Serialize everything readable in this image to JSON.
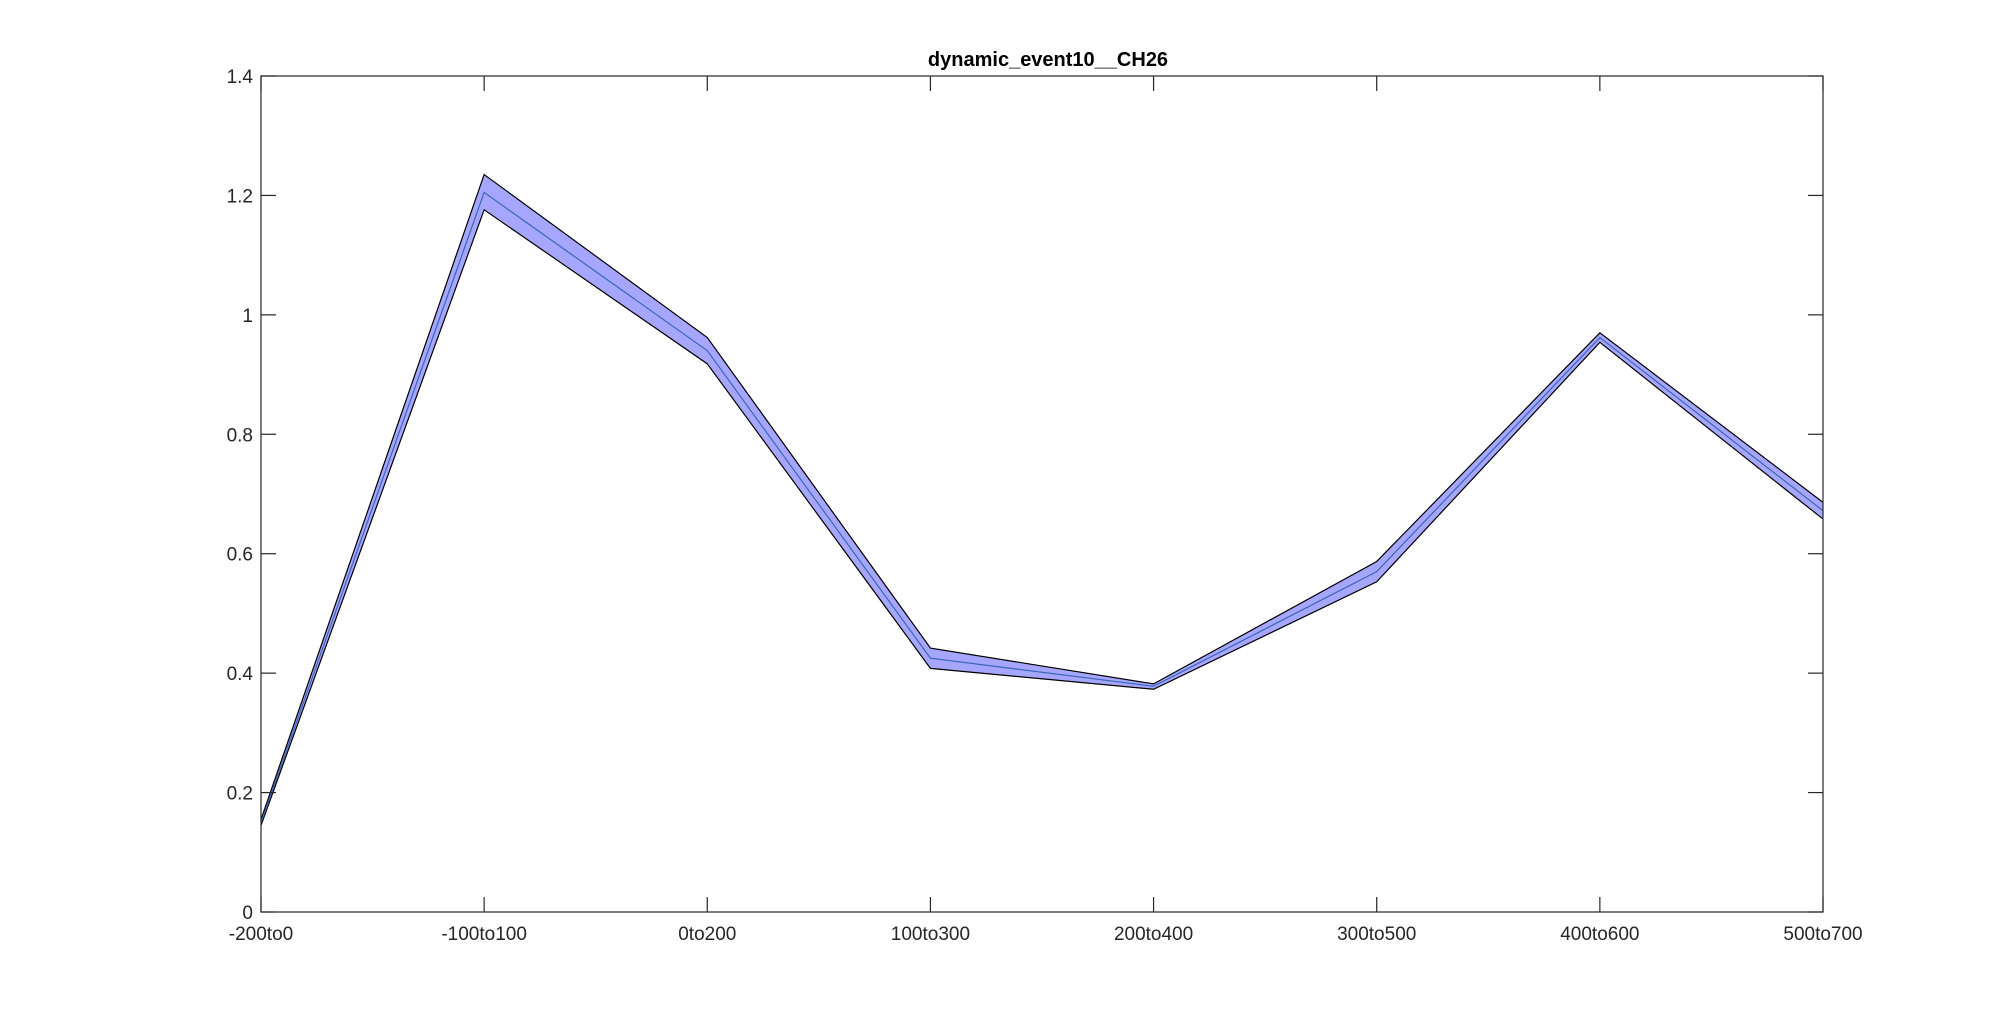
{
  "chart_data": {
    "type": "area",
    "title": "dynamic_event10__CH26",
    "xlabel": "",
    "ylabel": "",
    "categories": [
      "-200to0",
      "-100to100",
      "0to200",
      "100to300",
      "200to400",
      "300to500",
      "400to600",
      "500to700"
    ],
    "series": [
      {
        "mean": [
          0.15,
          1.205,
          0.94,
          0.425,
          0.378,
          0.57,
          0.962,
          0.672
        ],
        "upper": [
          0.155,
          1.235,
          0.962,
          0.442,
          0.382,
          0.587,
          0.97,
          0.686
        ],
        "lower": [
          0.145,
          1.176,
          0.918,
          0.408,
          0.373,
          0.553,
          0.954,
          0.658
        ]
      }
    ],
    "ylim": [
      0,
      1.4
    ],
    "yticks": [
      "0",
      "0.2",
      "0.4",
      "0.6",
      "0.8",
      "1",
      "1.2",
      "1.4"
    ],
    "ytick_values": [
      0,
      0.2,
      0.4,
      0.6,
      0.8,
      1.0,
      1.2,
      1.4
    ],
    "grid": false,
    "colors": {
      "band_fill": "#a6a6ff",
      "band_edge": "#000000",
      "mean_line": "#3a66b8",
      "axis": "#262626"
    }
  }
}
